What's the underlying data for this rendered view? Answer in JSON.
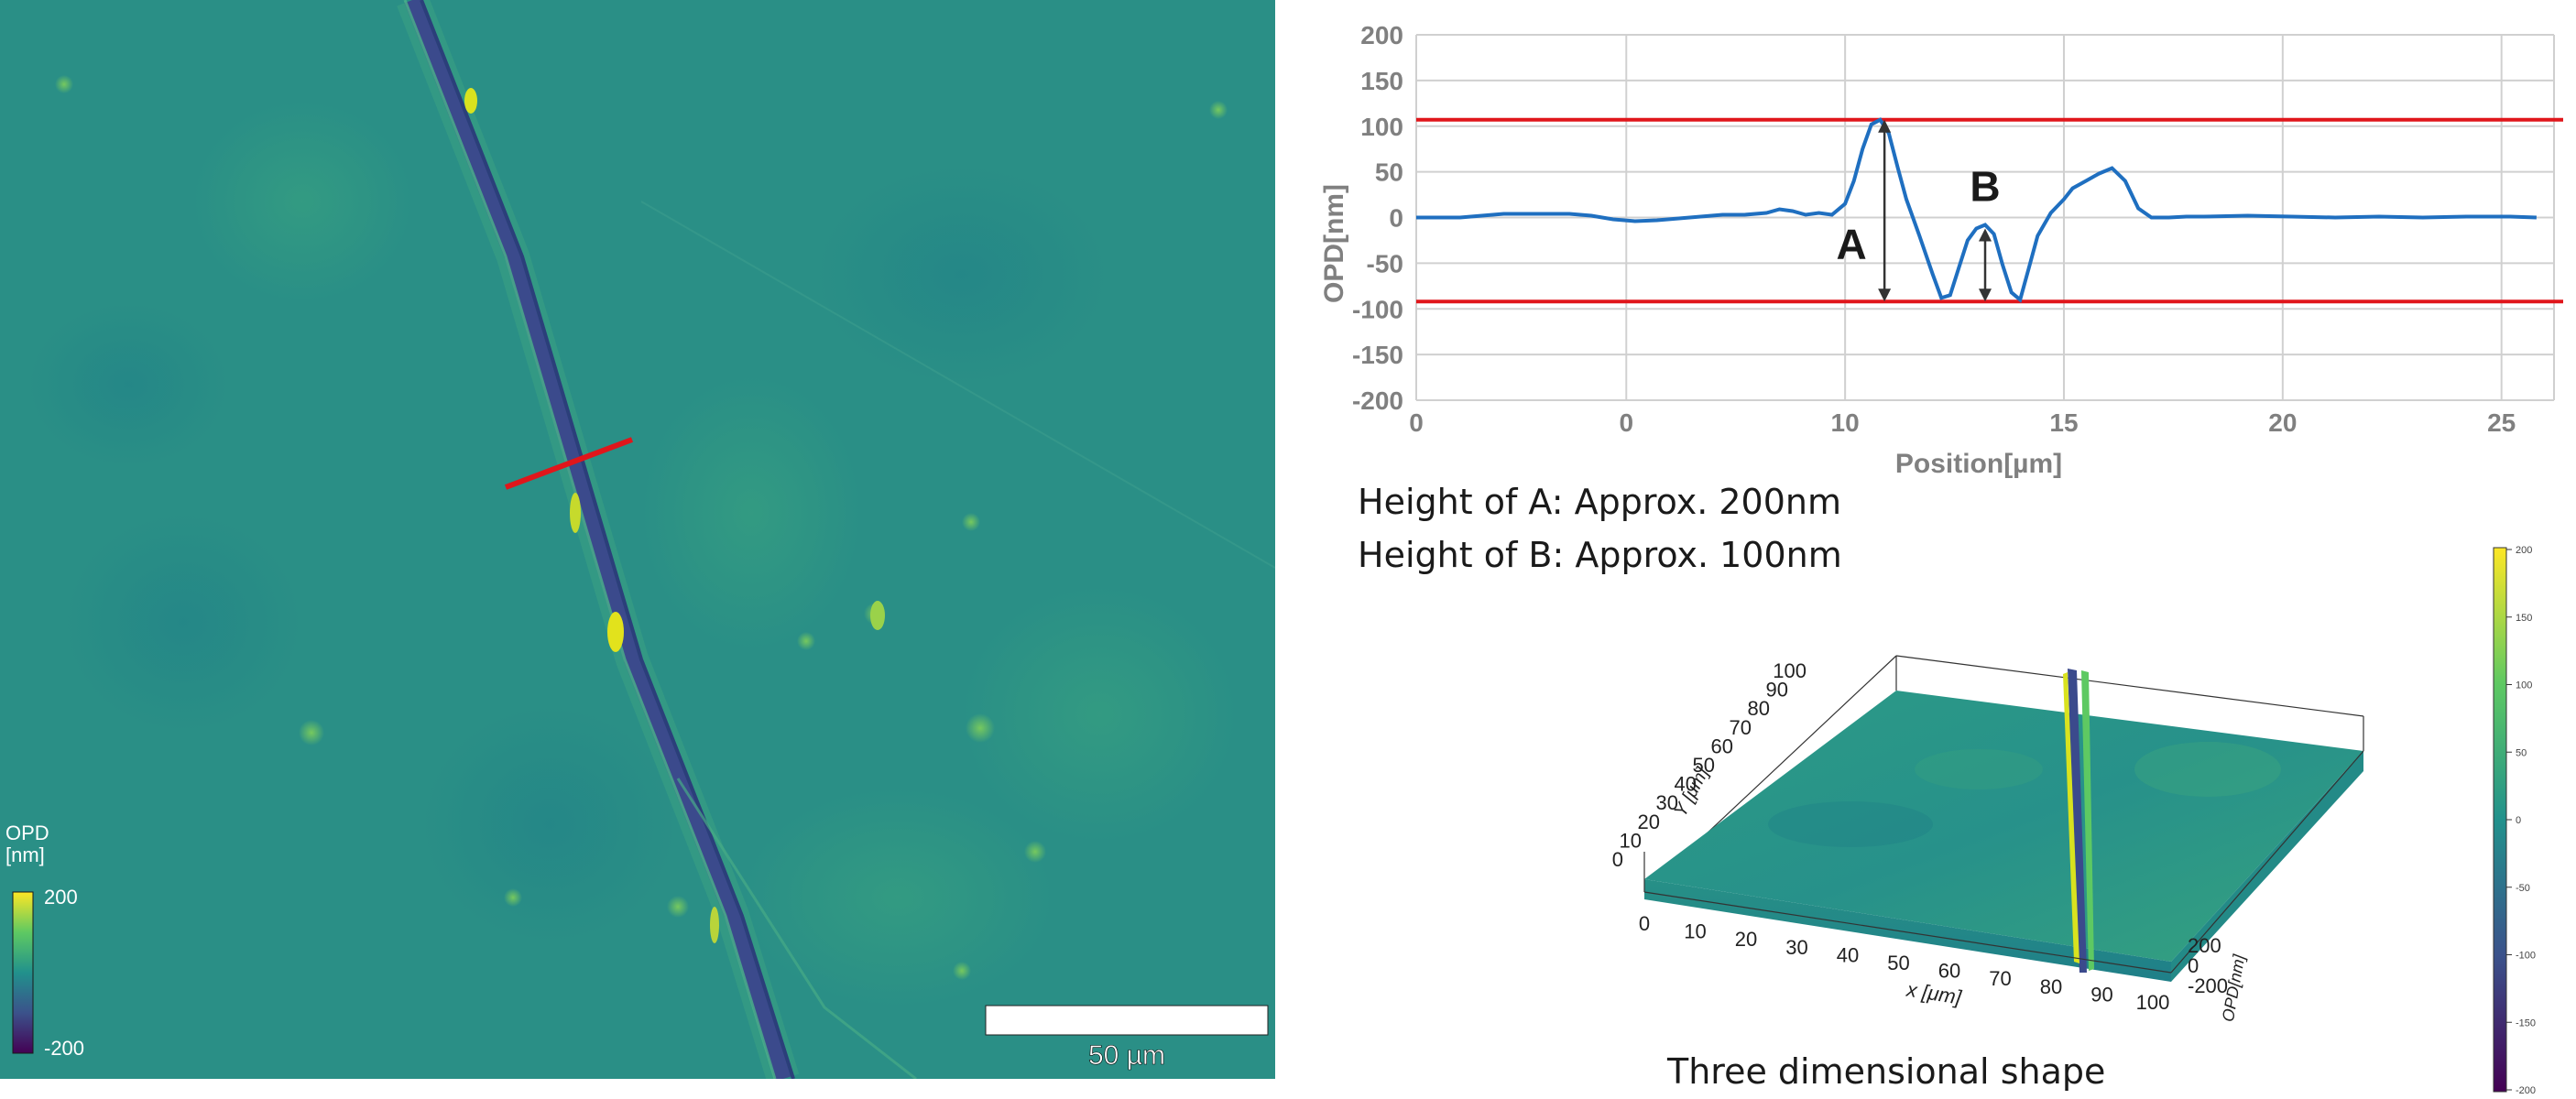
{
  "micrograph": {
    "opd_label": "OPD",
    "unit_label": "[nm]",
    "colorbar_max": "200",
    "colorbar_min": "-200",
    "scale_bar": "50 µm"
  },
  "chart_data": [
    {
      "type": "line",
      "xlabel": "Position[µm]",
      "ylabel": "OPD[nm]",
      "xlim": [
        0,
        26
      ],
      "ylim": [
        -200,
        200
      ],
      "x_tick_labels": [
        "0",
        "0",
        "10",
        "15",
        "20",
        "25"
      ],
      "y_ticks": [
        200,
        150,
        100,
        50,
        0,
        -50,
        -100,
        -150,
        -200
      ],
      "grid": true,
      "series": [
        {
          "color": "#1f6fc0",
          "x": [
            0,
            0.5,
            1.0,
            1.5,
            2.0,
            2.5,
            3.0,
            3.5,
            4.0,
            4.5,
            5.0,
            5.5,
            6.0,
            6.5,
            7.0,
            7.5,
            8.0,
            8.3,
            8.6,
            8.9,
            9.2,
            9.5,
            9.8,
            10.0,
            10.2,
            10.4,
            10.6,
            10.8,
            11.0,
            11.2,
            11.5,
            11.8,
            12.0,
            12.2,
            12.4,
            12.6,
            12.8,
            13.0,
            13.2,
            13.4,
            13.6,
            13.8,
            14.0,
            14.2,
            14.5,
            14.8,
            15.0,
            15.3,
            15.6,
            15.9,
            16.2,
            16.5,
            16.8,
            17.2,
            17.6,
            18.0,
            19.0,
            20.0,
            21.0,
            22.0,
            23.0,
            24.0,
            25.0,
            25.6
          ],
          "y": [
            0,
            0,
            0,
            2,
            4,
            4,
            4,
            4,
            2,
            -2,
            -4,
            -3,
            -1,
            1,
            3,
            3,
            5,
            9,
            7,
            3,
            5,
            3,
            15,
            40,
            75,
            102,
            107,
            92,
            55,
            20,
            -20,
            -62,
            -88,
            -85,
            -55,
            -25,
            -12,
            -8,
            -18,
            -52,
            -82,
            -90,
            -55,
            -20,
            5,
            20,
            32,
            40,
            48,
            54,
            40,
            10,
            0,
            0,
            1,
            1,
            2,
            1,
            0,
            1,
            0,
            1,
            1,
            0
          ]
        }
      ],
      "reference_lines": [
        {
          "y": 107,
          "color": "#e0161b"
        },
        {
          "y": -92,
          "color": "#e0161b"
        }
      ],
      "annotations": [
        {
          "text": "A",
          "x": 10.7,
          "from": -92,
          "to": 107
        },
        {
          "text": "B",
          "x": 13.0,
          "from": -92,
          "to": -12
        }
      ]
    },
    {
      "type": "heatmap",
      "xlabel": "x [μm]",
      "ylabel": "Y [μm]",
      "zlabel": "OPD[nm]",
      "x_ticks": [
        "0",
        "10",
        "20",
        "30",
        "40",
        "50",
        "60",
        "70",
        "80",
        "90",
        "100"
      ],
      "y_ticks": [
        "0",
        "10",
        "20",
        "30",
        "40",
        "50",
        "60",
        "70",
        "80",
        "90",
        "100"
      ],
      "z_ticks": [
        "200",
        "0",
        "-200"
      ],
      "colorbar_ticks": [
        "200",
        "150",
        "100",
        "50",
        "0",
        "-50",
        "-100",
        "-150",
        "-200"
      ]
    }
  ],
  "notes": {
    "height_a": "Height of A: Approx. 200nm",
    "height_b": "Height of B: Approx. 100nm",
    "caption_3d": "Three dimensional shape"
  },
  "colors": {
    "map_base": "#2a8f86",
    "scratch": "#3b4a8c",
    "highlight": "#d9e21f",
    "profile_line": "#1f6fc0",
    "reference": "#e0161b"
  }
}
